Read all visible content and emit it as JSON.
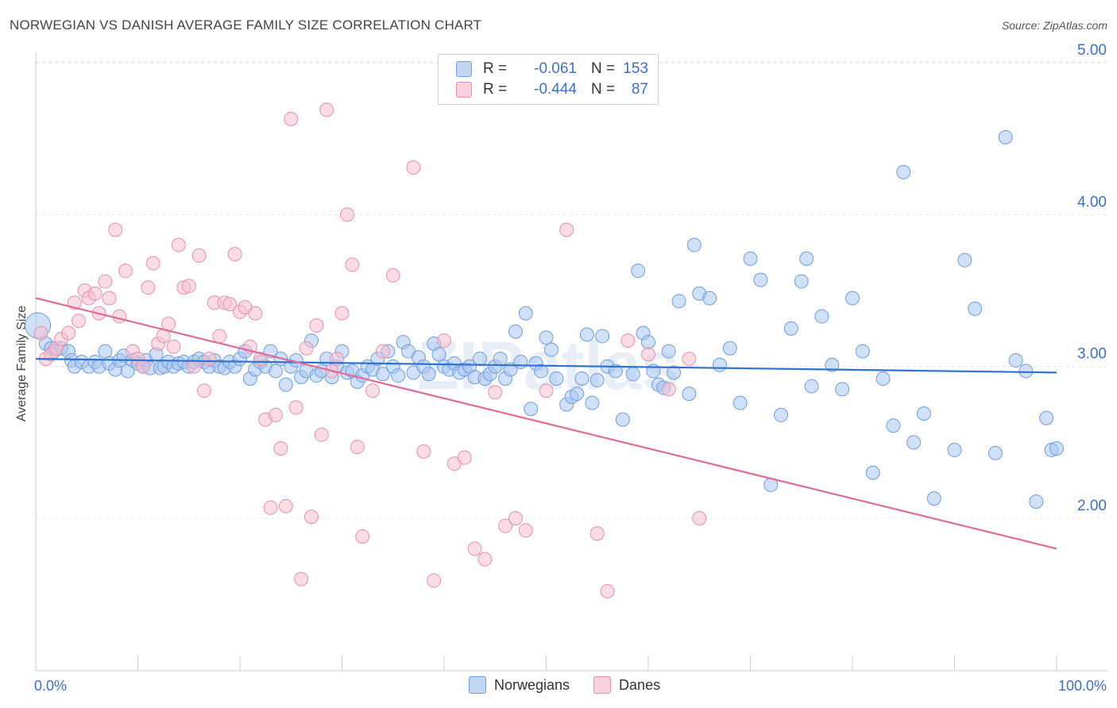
{
  "title": "NORWEGIAN VS DANISH AVERAGE FAMILY SIZE CORRELATION CHART",
  "source": "Source: ZipAtlas.com",
  "watermark": "ZIPatlas",
  "colors": {
    "blue_fill": "#a8c6f0",
    "blue_stroke": "#6e9ee0",
    "blue_line": "#2f72d0",
    "pink_fill": "#f6bfd0",
    "pink_stroke": "#e890ac",
    "pink_line": "#e06a98",
    "tick_text": "#3a6fd0",
    "grid": "#e4e4e4"
  },
  "legend": {
    "rows": [
      {
        "key": "R =",
        "r": "-0.061",
        "nkey": "N =",
        "n": "153"
      },
      {
        "key": "R =",
        "r": "-0.444",
        "nkey": "N =",
        "n": "87"
      }
    ]
  },
  "bottom_legend": {
    "items": [
      "Norwegians",
      "Danes"
    ]
  },
  "chart_data": {
    "type": "scatter",
    "title": "NORWEGIAN VS DANISH AVERAGE FAMILY SIZE CORRELATION CHART",
    "xlabel": "",
    "ylabel": "Average Family Size",
    "x_tick_labels": [
      "0.0%",
      "100.0%"
    ],
    "y_tick_labels": [
      "2.00",
      "3.00",
      "4.00",
      "5.00"
    ],
    "xlim": [
      0,
      100
    ],
    "ylim": [
      1.05,
      5.1
    ],
    "grid": true,
    "legend_position": "top-center",
    "series": [
      {
        "name": "Norwegians",
        "R": -0.061,
        "N": 153,
        "trend": [
          [
            0,
            3.05
          ],
          [
            100,
            2.96
          ]
        ],
        "points": [
          [
            0.2,
            3.27
          ],
          [
            1.0,
            3.15
          ],
          [
            1.5,
            3.12
          ],
          [
            1.8,
            3.1
          ],
          [
            2.5,
            3.12
          ],
          [
            3.2,
            3.1
          ],
          [
            3.5,
            3.04
          ],
          [
            3.8,
            3.0
          ],
          [
            4.5,
            3.03
          ],
          [
            5.2,
            3.0
          ],
          [
            5.8,
            3.03
          ],
          [
            6.2,
            3.0
          ],
          [
            6.8,
            3.1
          ],
          [
            7.2,
            3.02
          ],
          [
            7.8,
            2.98
          ],
          [
            8.2,
            3.04
          ],
          [
            8.6,
            3.07
          ],
          [
            9.0,
            2.97
          ],
          [
            9.5,
            3.04
          ],
          [
            10.0,
            3.02
          ],
          [
            10.5,
            3.0
          ],
          [
            10.8,
            3.04
          ],
          [
            11.2,
            2.99
          ],
          [
            11.8,
            3.08
          ],
          [
            12.2,
            2.99
          ],
          [
            12.6,
            3.0
          ],
          [
            13.0,
            3.03
          ],
          [
            13.5,
            3.0
          ],
          [
            14.0,
            3.02
          ],
          [
            14.5,
            3.03
          ],
          [
            15.0,
            3.0
          ],
          [
            15.5,
            3.03
          ],
          [
            16.0,
            3.05
          ],
          [
            16.5,
            3.03
          ],
          [
            17.0,
            3.0
          ],
          [
            17.5,
            3.04
          ],
          [
            18.0,
            3.0
          ],
          [
            18.5,
            2.99
          ],
          [
            19.0,
            3.03
          ],
          [
            19.5,
            3.0
          ],
          [
            20.0,
            3.05
          ],
          [
            20.5,
            3.1
          ],
          [
            21.0,
            2.92
          ],
          [
            21.5,
            2.98
          ],
          [
            22.0,
            3.03
          ],
          [
            22.5,
            3.0
          ],
          [
            23.0,
            3.1
          ],
          [
            23.5,
            2.97
          ],
          [
            24.0,
            3.05
          ],
          [
            24.5,
            2.88
          ],
          [
            25.0,
            3.0
          ],
          [
            25.5,
            3.04
          ],
          [
            26.0,
            2.93
          ],
          [
            26.5,
            2.97
          ],
          [
            27.0,
            3.17
          ],
          [
            27.5,
            2.94
          ],
          [
            28.0,
            2.97
          ],
          [
            28.5,
            3.05
          ],
          [
            29.0,
            2.93
          ],
          [
            29.5,
            3.0
          ],
          [
            30.0,
            3.1
          ],
          [
            30.5,
            2.96
          ],
          [
            31.0,
            2.97
          ],
          [
            31.5,
            2.9
          ],
          [
            32.0,
            2.94
          ],
          [
            32.5,
            3.0
          ],
          [
            33.0,
            2.98
          ],
          [
            33.5,
            3.05
          ],
          [
            34.0,
            2.95
          ],
          [
            34.5,
            3.1
          ],
          [
            35.0,
            3.0
          ],
          [
            35.5,
            2.94
          ],
          [
            36.0,
            3.16
          ],
          [
            36.5,
            3.1
          ],
          [
            37.0,
            2.96
          ],
          [
            37.5,
            3.06
          ],
          [
            38.0,
            3.0
          ],
          [
            38.5,
            2.95
          ],
          [
            39.0,
            3.15
          ],
          [
            39.5,
            3.08
          ],
          [
            40.0,
            3.0
          ],
          [
            40.5,
            2.98
          ],
          [
            41.0,
            3.02
          ],
          [
            41.5,
            2.96
          ],
          [
            42.0,
            2.98
          ],
          [
            42.5,
            3.0
          ],
          [
            43.0,
            2.93
          ],
          [
            43.5,
            3.05
          ],
          [
            44.0,
            2.92
          ],
          [
            44.5,
            2.95
          ],
          [
            45.0,
            3.0
          ],
          [
            45.5,
            3.05
          ],
          [
            46.0,
            2.92
          ],
          [
            46.5,
            2.98
          ],
          [
            47.0,
            3.23
          ],
          [
            47.5,
            3.03
          ],
          [
            48.0,
            3.35
          ],
          [
            48.5,
            2.72
          ],
          [
            49.0,
            3.02
          ],
          [
            49.5,
            2.97
          ],
          [
            50.0,
            3.19
          ],
          [
            50.5,
            3.11
          ],
          [
            51.0,
            2.92
          ],
          [
            52.0,
            2.75
          ],
          [
            52.5,
            2.8
          ],
          [
            53.0,
            2.82
          ],
          [
            53.5,
            2.92
          ],
          [
            54.0,
            3.21
          ],
          [
            54.5,
            2.76
          ],
          [
            55.0,
            2.91
          ],
          [
            55.5,
            3.2
          ],
          [
            56.0,
            3.0
          ],
          [
            56.8,
            2.97
          ],
          [
            57.5,
            2.65
          ],
          [
            58.5,
            2.95
          ],
          [
            59.0,
            3.63
          ],
          [
            59.5,
            3.22
          ],
          [
            60.0,
            3.16
          ],
          [
            60.5,
            2.97
          ],
          [
            61.0,
            2.88
          ],
          [
            61.5,
            2.86
          ],
          [
            62.0,
            3.1
          ],
          [
            62.5,
            2.96
          ],
          [
            63.0,
            3.43
          ],
          [
            64.0,
            2.82
          ],
          [
            64.5,
            3.8
          ],
          [
            65.0,
            3.48
          ],
          [
            66.0,
            3.45
          ],
          [
            67.0,
            3.01
          ],
          [
            68.0,
            3.12
          ],
          [
            69.0,
            2.76
          ],
          [
            70.0,
            3.71
          ],
          [
            71.0,
            3.57
          ],
          [
            72.0,
            2.22
          ],
          [
            73.0,
            2.68
          ],
          [
            74.0,
            3.25
          ],
          [
            75.0,
            3.56
          ],
          [
            75.5,
            3.71
          ],
          [
            76.0,
            2.87
          ],
          [
            77.0,
            3.33
          ],
          [
            78.0,
            3.01
          ],
          [
            79.0,
            2.85
          ],
          [
            80.0,
            3.45
          ],
          [
            81.0,
            3.1
          ],
          [
            82.0,
            2.3
          ],
          [
            83.0,
            2.92
          ],
          [
            84.0,
            2.61
          ],
          [
            85.0,
            4.28
          ],
          [
            86.0,
            2.5
          ],
          [
            87.0,
            2.69
          ],
          [
            88.0,
            2.13
          ],
          [
            90.0,
            2.45
          ],
          [
            91.0,
            3.7
          ],
          [
            92.0,
            3.38
          ],
          [
            94.0,
            2.43
          ],
          [
            95.0,
            4.51
          ],
          [
            96.0,
            3.04
          ],
          [
            97.0,
            2.97
          ],
          [
            98.0,
            2.11
          ],
          [
            99.0,
            2.66
          ],
          [
            99.5,
            2.45
          ],
          [
            100.0,
            2.46
          ]
        ]
      },
      {
        "name": "Danes",
        "R": -0.444,
        "N": 87,
        "trend": [
          [
            0,
            3.45
          ],
          [
            100,
            1.8
          ]
        ],
        "points": [
          [
            0.5,
            3.22
          ],
          [
            1.0,
            3.05
          ],
          [
            1.5,
            3.08
          ],
          [
            2.0,
            3.12
          ],
          [
            2.5,
            3.18
          ],
          [
            3.2,
            3.22
          ],
          [
            3.8,
            3.42
          ],
          [
            4.2,
            3.3
          ],
          [
            4.8,
            3.5
          ],
          [
            5.2,
            3.45
          ],
          [
            5.8,
            3.48
          ],
          [
            6.2,
            3.35
          ],
          [
            6.8,
            3.56
          ],
          [
            7.2,
            3.45
          ],
          [
            7.8,
            3.9
          ],
          [
            8.2,
            3.33
          ],
          [
            8.8,
            3.63
          ],
          [
            9.5,
            3.1
          ],
          [
            10.0,
            3.05
          ],
          [
            10.5,
            3.0
          ],
          [
            11.0,
            3.52
          ],
          [
            11.5,
            3.68
          ],
          [
            12.0,
            3.15
          ],
          [
            12.5,
            3.2
          ],
          [
            13.0,
            3.28
          ],
          [
            13.5,
            3.13
          ],
          [
            14.0,
            3.8
          ],
          [
            14.5,
            3.52
          ],
          [
            15.0,
            3.53
          ],
          [
            15.5,
            3.0
          ],
          [
            16.0,
            3.73
          ],
          [
            16.5,
            2.84
          ],
          [
            17.0,
            3.05
          ],
          [
            17.5,
            3.42
          ],
          [
            18.0,
            3.2
          ],
          [
            18.5,
            3.42
          ],
          [
            19.0,
            3.41
          ],
          [
            19.5,
            3.74
          ],
          [
            20.0,
            3.36
          ],
          [
            20.5,
            3.39
          ],
          [
            21.0,
            3.13
          ],
          [
            21.5,
            3.35
          ],
          [
            22.0,
            3.05
          ],
          [
            22.5,
            2.65
          ],
          [
            23.0,
            2.07
          ],
          [
            23.5,
            2.68
          ],
          [
            24.0,
            2.46
          ],
          [
            24.5,
            2.08
          ],
          [
            25.0,
            4.63
          ],
          [
            25.5,
            2.73
          ],
          [
            26.0,
            1.6
          ],
          [
            26.5,
            3.12
          ],
          [
            27.0,
            2.01
          ],
          [
            27.5,
            3.27
          ],
          [
            28.0,
            2.55
          ],
          [
            28.5,
            4.69
          ],
          [
            29.0,
            2.97
          ],
          [
            29.5,
            3.05
          ],
          [
            30.0,
            3.35
          ],
          [
            30.5,
            4.0
          ],
          [
            31.0,
            3.67
          ],
          [
            31.5,
            2.47
          ],
          [
            32.0,
            1.88
          ],
          [
            33.0,
            2.84
          ],
          [
            34.0,
            3.1
          ],
          [
            35.0,
            3.6
          ],
          [
            37.0,
            4.31
          ],
          [
            38.0,
            2.44
          ],
          [
            39.0,
            1.59
          ],
          [
            40.0,
            3.17
          ],
          [
            41.0,
            2.36
          ],
          [
            42.0,
            2.4
          ],
          [
            43.0,
            1.8
          ],
          [
            44.0,
            1.73
          ],
          [
            45.0,
            2.83
          ],
          [
            46.0,
            1.95
          ],
          [
            47.0,
            2.0
          ],
          [
            48.0,
            1.92
          ],
          [
            50.0,
            2.84
          ],
          [
            52.0,
            3.9
          ],
          [
            55.0,
            1.9
          ],
          [
            56.0,
            1.52
          ],
          [
            58.0,
            3.17
          ],
          [
            60.0,
            3.08
          ],
          [
            62.0,
            2.85
          ],
          [
            64.0,
            3.05
          ],
          [
            65.0,
            2.0
          ]
        ]
      }
    ]
  }
}
